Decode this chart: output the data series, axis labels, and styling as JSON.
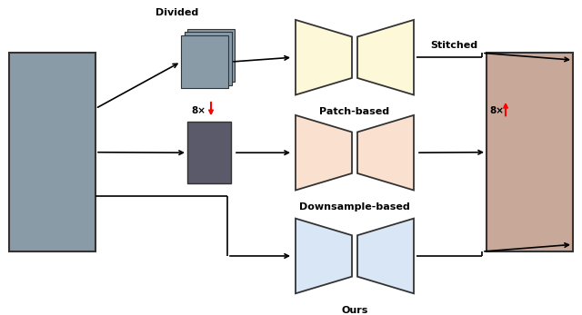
{
  "bg_color": "#ffffff",
  "patch_color": "#fdf8d8",
  "patch_color_edge": "#333333",
  "downsample_color": "#fae0cf",
  "downsample_color_edge": "#333333",
  "ours_color": "#d8e6f5",
  "ours_color_edge": "#333333",
  "input_color": "#8a9ba8",
  "output_color": "#c8a898",
  "small_img_color": "#5a5a6a",
  "patch_stack_color": "#8a9ba8",
  "labels": {
    "divided": "Divided",
    "stitched": "Stitched",
    "patch_based": "Patch-based",
    "downsample_based": "Downsample-based",
    "ours": "Ours",
    "8x_down": "8×",
    "8x_up": "8×"
  }
}
